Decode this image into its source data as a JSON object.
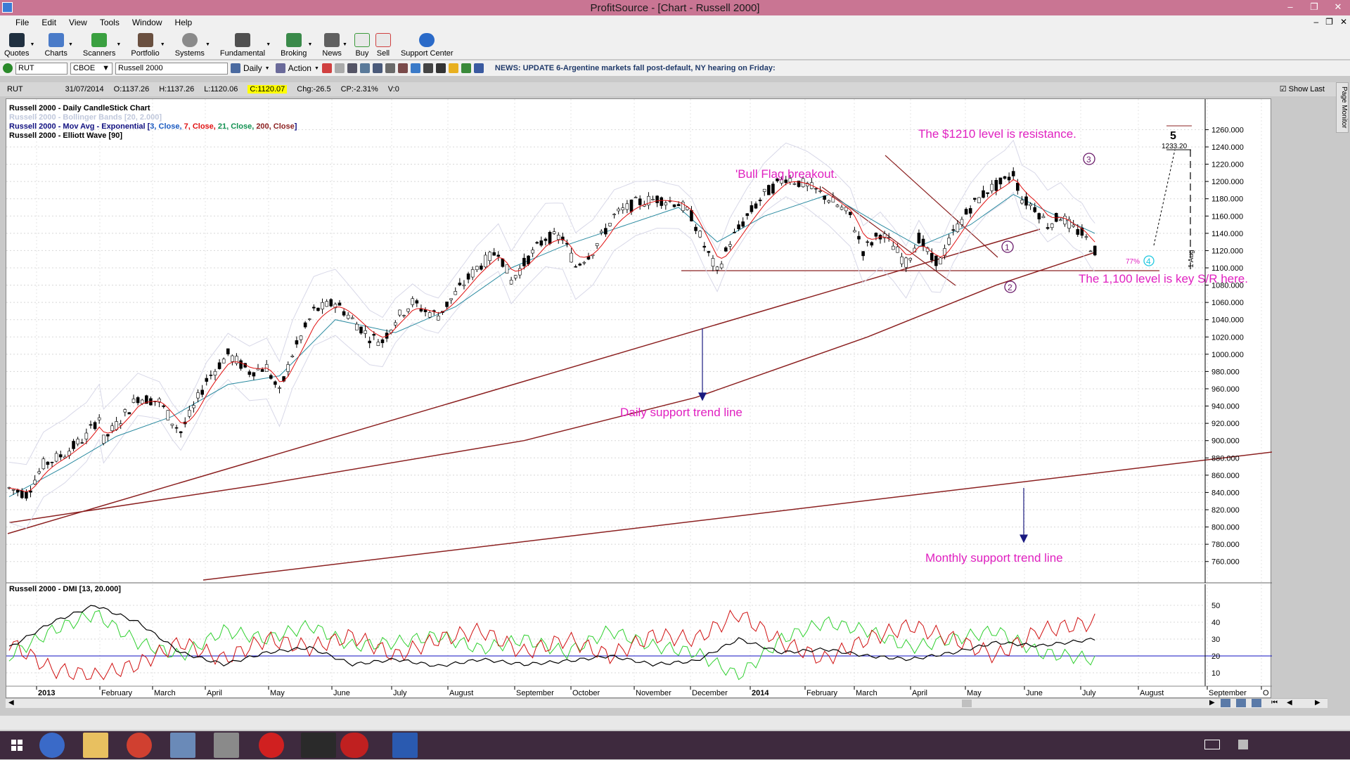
{
  "window": {
    "title": "ProfitSource - [Chart - Russell 2000]"
  },
  "menu": [
    "File",
    "Edit",
    "View",
    "Tools",
    "Window",
    "Help"
  ],
  "toolbar": [
    "Quotes",
    "Charts",
    "Scanners",
    "Portfolio",
    "Systems",
    "Fundamental",
    "Broking",
    "News",
    "Buy",
    "Sell",
    "Support Center"
  ],
  "symbolbar": {
    "symbol": "RUT",
    "exchange": "CBOE",
    "name": "Russell 2000",
    "period": "Daily",
    "action": "Action",
    "news": "NEWS: UPDATE 6-Argentine markets fall post-default, NY hearing on Friday:"
  },
  "info": {
    "symbol": "RUT",
    "date": "31/07/2014",
    "open": "O:1137.26",
    "high": "H:1137.26",
    "low": "L:1120.06",
    "close": "C:1120.07",
    "chg": "Chg:-26.5",
    "cp": "CP:-2.31%",
    "vol": "V:0",
    "showlast": "Show Last"
  },
  "page_monitor": "Page Monitor",
  "legend": {
    "l1": "Russell 2000 - Daily CandleStick Chart",
    "l2": "Russell 2000 - Bollinger Bands [20, 2.000]",
    "l3a": "Russell 2000 - Mov Avg - Exponential [",
    "l3b": "3, Close, ",
    "l3c": "7, Close, ",
    "l3d": "21, Close, ",
    "l3e": "200, Close",
    "l3f": "]",
    "l4": "Russell 2000 - Elliott Wave [90]",
    "dmi": "Russell 2000 - DMI [13, 20.000]"
  },
  "annotations": {
    "resistance": "The $1210 level is resistance.",
    "bullflag": "'Bull Flag breakout.",
    "keysr": "The 1,100 level is key S/R here.",
    "daily": "Daily support trend line",
    "monthly": "Monthly support trend line",
    "wave5": "5",
    "target": "1233.20",
    "pct": "77%",
    "aug": "1 Aug",
    "w1": "1",
    "w2": "2",
    "w3": "3",
    "w4": "4"
  },
  "colors": {
    "title_bar": "#c97593",
    "annotation": "#e020c0",
    "trend": "#8b2020",
    "wave": "#6a1a6a",
    "ema3": "#1010c0",
    "ema7": "#e01010",
    "ema21": "#109050"
  },
  "chart_data": {
    "type": "candlestick",
    "ylim": [
      750,
      1275
    ],
    "y_ticks": [
      "1260.000",
      "1240.000",
      "1220.000",
      "1200.000",
      "1180.000",
      "1160.000",
      "1140.000",
      "1120.000",
      "1100.000",
      "1080.000",
      "1060.000",
      "1040.000",
      "1020.000",
      "1000.000",
      "980.000",
      "960.000",
      "940.000",
      "920.000",
      "900.000",
      "880.000",
      "860.000",
      "840.000",
      "820.000",
      "800.000",
      "780.000",
      "760.000"
    ],
    "x_labels": [
      "2013",
      "February",
      "March",
      "April",
      "May",
      "June",
      "July",
      "August",
      "September",
      "October",
      "November",
      "December",
      "2014",
      "February",
      "March",
      "April",
      "May",
      "June",
      "July",
      "August",
      "September",
      "O"
    ],
    "dmi_ticks": [
      "50",
      "40",
      "30",
      "20",
      "10"
    ],
    "price_path": [
      [
        0,
        845
      ],
      [
        4,
        838
      ],
      [
        8,
        872
      ],
      [
        13,
        885
      ],
      [
        18,
        905
      ],
      [
        21,
        928
      ],
      [
        22,
        900
      ],
      [
        25,
        918
      ],
      [
        30,
        950
      ],
      [
        35,
        945
      ],
      [
        38,
        922
      ],
      [
        40,
        910
      ],
      [
        43,
        938
      ],
      [
        46,
        970
      ],
      [
        51,
        1000
      ],
      [
        56,
        980
      ],
      [
        60,
        985
      ],
      [
        63,
        955
      ],
      [
        66,
        1000
      ],
      [
        71,
        1050
      ],
      [
        76,
        1060
      ],
      [
        80,
        1040
      ],
      [
        84,
        1020
      ],
      [
        87,
        1015
      ],
      [
        90,
        1040
      ],
      [
        94,
        1060
      ],
      [
        97,
        1050
      ],
      [
        100,
        1045
      ],
      [
        104,
        1070
      ],
      [
        109,
        1100
      ],
      [
        114,
        1120
      ],
      [
        117,
        1085
      ],
      [
        120,
        1105
      ],
      [
        125,
        1135
      ],
      [
        129,
        1135
      ],
      [
        132,
        1102
      ],
      [
        136,
        1120
      ],
      [
        141,
        1160
      ],
      [
        146,
        1175
      ],
      [
        151,
        1180
      ],
      [
        156,
        1175
      ],
      [
        159,
        1160
      ],
      [
        162,
        1125
      ],
      [
        165,
        1095
      ],
      [
        168,
        1130
      ],
      [
        172,
        1160
      ],
      [
        176,
        1185
      ],
      [
        181,
        1205
      ],
      [
        186,
        1195
      ],
      [
        191,
        1180
      ],
      [
        196,
        1160
      ],
      [
        199,
        1120
      ],
      [
        203,
        1140
      ],
      [
        206,
        1125
      ],
      [
        209,
        1105
      ],
      [
        212,
        1135
      ],
      [
        215,
        1110
      ],
      [
        217,
        1108
      ],
      [
        220,
        1140
      ],
      [
        224,
        1170
      ],
      [
        228,
        1190
      ],
      [
        232,
        1200
      ],
      [
        234,
        1210
      ],
      [
        236,
        1180
      ],
      [
        239,
        1170
      ],
      [
        242,
        1150
      ],
      [
        245,
        1160
      ],
      [
        248,
        1145
      ],
      [
        250,
        1140
      ],
      [
        252,
        1125
      ],
      [
        253,
        1120
      ]
    ],
    "ema21_path": [
      [
        0,
        835
      ],
      [
        13,
        870
      ],
      [
        25,
        905
      ],
      [
        38,
        928
      ],
      [
        51,
        965
      ],
      [
        63,
        975
      ],
      [
        76,
        1040
      ],
      [
        90,
        1025
      ],
      [
        104,
        1055
      ],
      [
        117,
        1100
      ],
      [
        129,
        1125
      ],
      [
        141,
        1145
      ],
      [
        156,
        1170
      ],
      [
        165,
        1130
      ],
      [
        176,
        1160
      ],
      [
        191,
        1185
      ],
      [
        203,
        1150
      ],
      [
        212,
        1125
      ],
      [
        224,
        1150
      ],
      [
        234,
        1185
      ],
      [
        242,
        1165
      ],
      [
        253,
        1140
      ]
    ],
    "dmi_plus": [
      [
        0,
        20
      ],
      [
        10,
        35
      ],
      [
        20,
        45
      ],
      [
        30,
        28
      ],
      [
        40,
        20
      ],
      [
        50,
        35
      ],
      [
        60,
        30
      ],
      [
        70,
        38
      ],
      [
        80,
        26
      ],
      [
        90,
        28
      ],
      [
        100,
        32
      ],
      [
        110,
        24
      ],
      [
        120,
        30
      ],
      [
        130,
        22
      ],
      [
        140,
        35
      ],
      [
        150,
        26
      ],
      [
        160,
        22
      ],
      [
        170,
        8
      ],
      [
        180,
        30
      ],
      [
        190,
        40
      ],
      [
        200,
        35
      ],
      [
        210,
        25
      ],
      [
        220,
        30
      ],
      [
        230,
        35
      ],
      [
        240,
        22
      ],
      [
        253,
        18
      ]
    ],
    "dmi_minus": [
      [
        0,
        28
      ],
      [
        10,
        12
      ],
      [
        20,
        8
      ],
      [
        30,
        15
      ],
      [
        40,
        28
      ],
      [
        50,
        18
      ],
      [
        60,
        30
      ],
      [
        70,
        25
      ],
      [
        80,
        32
      ],
      [
        90,
        20
      ],
      [
        100,
        30
      ],
      [
        110,
        35
      ],
      [
        120,
        22
      ],
      [
        130,
        30
      ],
      [
        140,
        20
      ],
      [
        150,
        32
      ],
      [
        160,
        30
      ],
      [
        170,
        45
      ],
      [
        180,
        28
      ],
      [
        190,
        18
      ],
      [
        200,
        30
      ],
      [
        210,
        38
      ],
      [
        220,
        30
      ],
      [
        230,
        20
      ],
      [
        240,
        35
      ],
      [
        253,
        40
      ]
    ],
    "adx": [
      [
        0,
        25
      ],
      [
        10,
        40
      ],
      [
        20,
        50
      ],
      [
        30,
        40
      ],
      [
        40,
        22
      ],
      [
        50,
        15
      ],
      [
        60,
        22
      ],
      [
        70,
        25
      ],
      [
        80,
        15
      ],
      [
        90,
        18
      ],
      [
        100,
        14
      ],
      [
        110,
        18
      ],
      [
        120,
        15
      ],
      [
        130,
        17
      ],
      [
        140,
        20
      ],
      [
        150,
        15
      ],
      [
        160,
        17
      ],
      [
        170,
        30
      ],
      [
        180,
        22
      ],
      [
        190,
        24
      ],
      [
        200,
        20
      ],
      [
        210,
        18
      ],
      [
        220,
        22
      ],
      [
        230,
        28
      ],
      [
        240,
        26
      ],
      [
        253,
        30
      ]
    ],
    "dmi_threshold": 20
  }
}
